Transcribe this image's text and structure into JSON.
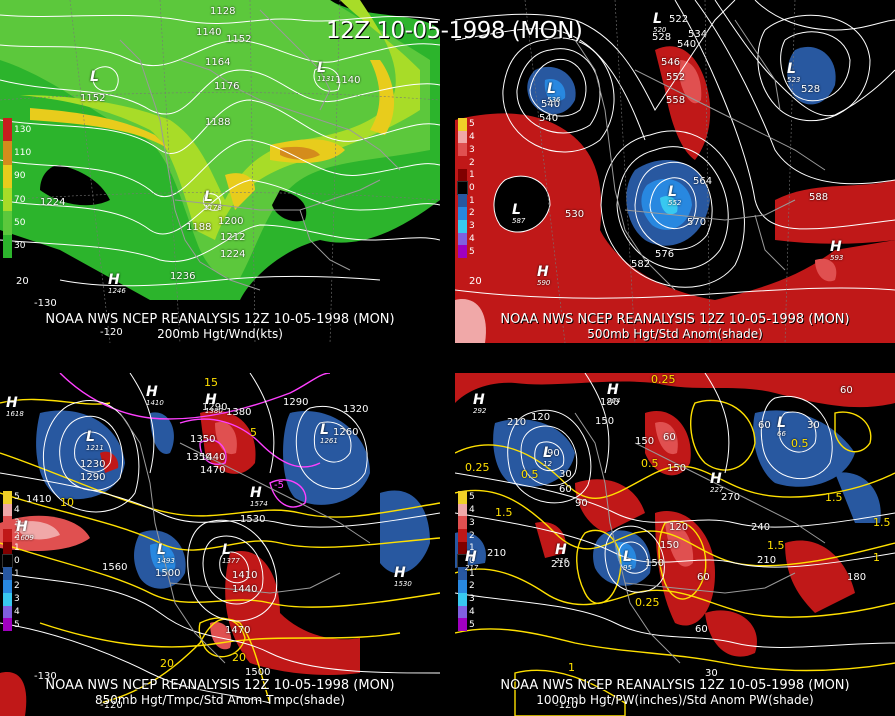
{
  "header": {
    "datetime_label": "12Z 10-05-1998 (MON)"
  },
  "panels": [
    {
      "id": "p200",
      "caption_line1": "NOAA NWS NCEP REANALYSIS 12Z 10-05-1998 (MON)",
      "caption_line2": "200mb Hgt/Wnd(kts)",
      "legend": [
        {
          "label": "130",
          "color": "#c81e1e"
        },
        {
          "label": "110",
          "color": "#d48c1c"
        },
        {
          "label": "90",
          "color": "#e8cc1c"
        },
        {
          "label": "70",
          "color": "#a8dc28"
        },
        {
          "label": "50",
          "color": "#5cc83c"
        },
        {
          "label": "30",
          "color": "#2cb42c"
        }
      ],
      "contour_labels": [
        "1128",
        "1140",
        "1152",
        "1164",
        "1176",
        "1188",
        "1200",
        "1212",
        "1224",
        "1236",
        "1140",
        "1152",
        "1188",
        "1224"
      ],
      "centers": [
        {
          "type": "L",
          "value": "1131"
        },
        {
          "type": "L",
          "value": "1178"
        },
        {
          "type": "H",
          "value": "1246"
        }
      ],
      "longitude_labels": [
        "-130",
        "-120",
        "20"
      ]
    },
    {
      "id": "p500",
      "caption_line1": "NOAA NWS NCEP REANALYSIS 12Z 10-05-1998 (MON)",
      "caption_line2": "500mb Hgt/Std Anom(shade)",
      "legend": [
        {
          "label": "5",
          "color": "#f0d028"
        },
        {
          "label": "4",
          "color": "#f0a8a8"
        },
        {
          "label": "3",
          "color": "#e05050"
        },
        {
          "label": "2",
          "color": "#c01818"
        },
        {
          "label": "1",
          "color": "#800000"
        },
        {
          "label": "0",
          "color": "#000000"
        },
        {
          "label": "1",
          "color": "#2858a0"
        },
        {
          "label": "2",
          "color": "#2888e0"
        },
        {
          "label": "3",
          "color": "#38c8f0"
        },
        {
          "label": "4",
          "color": "#8060e0"
        },
        {
          "label": "5",
          "color": "#a000c0"
        }
      ],
      "contour_labels": [
        "522",
        "528",
        "534",
        "540",
        "546",
        "552",
        "558",
        "564",
        "570",
        "576",
        "582",
        "588",
        "528",
        "540",
        "540",
        "530"
      ],
      "centers": [
        {
          "type": "L",
          "value": "520"
        },
        {
          "type": "L",
          "value": "536"
        },
        {
          "type": "L",
          "value": "523"
        },
        {
          "type": "L",
          "value": "552"
        },
        {
          "type": "H",
          "value": "590"
        },
        {
          "type": "H",
          "value": "593"
        },
        {
          "type": "L",
          "value": "587"
        }
      ],
      "longitude_labels": [
        "20"
      ]
    },
    {
      "id": "p850",
      "caption_line1": "NOAA NWS NCEP REANALYSIS 12Z 10-05-1998 (MON)",
      "caption_line2": "850mb Hgt/Tmpc/Std Anom Tmpc(shade)",
      "legend": [
        {
          "label": "5",
          "color": "#f0d028"
        },
        {
          "label": "4",
          "color": "#f0a8a8"
        },
        {
          "label": "3",
          "color": "#e05050"
        },
        {
          "label": "2",
          "color": "#c01818"
        },
        {
          "label": "1",
          "color": "#800000"
        },
        {
          "label": "0",
          "color": "#000000"
        },
        {
          "label": "1",
          "color": "#2858a0"
        },
        {
          "label": "2",
          "color": "#2888e0"
        },
        {
          "label": "3",
          "color": "#38c8f0"
        },
        {
          "label": "4",
          "color": "#8060e0"
        },
        {
          "label": "5",
          "color": "#a000c0"
        }
      ],
      "contour_labels": [
        "1230",
        "1290",
        "1350",
        "1380",
        "1440",
        "1470",
        "1410",
        "1530",
        "1560",
        "1500",
        "1500",
        "1470",
        "1290",
        "1320",
        "1260",
        "1290",
        "1350",
        "1440",
        "1410"
      ],
      "temp_labels": [
        "15",
        "20",
        "20",
        "5",
        "10"
      ],
      "anom_labels": [
        "-5"
      ],
      "centers": [
        {
          "type": "H",
          "value": "1618"
        },
        {
          "type": "H",
          "value": "1410"
        },
        {
          "type": "L",
          "value": "1211"
        },
        {
          "type": "L",
          "value": "1261"
        },
        {
          "type": "H",
          "value": "1574"
        },
        {
          "type": "H",
          "value": "1609"
        },
        {
          "type": "L",
          "value": "1493"
        },
        {
          "type": "L",
          "value": "1377"
        },
        {
          "type": "H",
          "value": "1530"
        },
        {
          "type": "H",
          "value": "1380"
        }
      ],
      "longitude_labels": [
        "-130",
        "-120"
      ]
    },
    {
      "id": "p1000",
      "caption_line1": "NOAA NWS NCEP REANALYSIS 12Z 10-05-1998 (MON)",
      "caption_line2": "1000mb Hgt/PW(inches)/Std Anom PW(shade)",
      "legend": [
        {
          "label": "5",
          "color": "#f0d028"
        },
        {
          "label": "4",
          "color": "#f0a8a8"
        },
        {
          "label": "3",
          "color": "#e05050"
        },
        {
          "label": "2",
          "color": "#c01818"
        },
        {
          "label": "1",
          "color": "#800000"
        },
        {
          "label": "0",
          "color": "#000000"
        },
        {
          "label": "1",
          "color": "#2858a0"
        },
        {
          "label": "2",
          "color": "#2888e0"
        },
        {
          "label": "3",
          "color": "#38c8f0"
        },
        {
          "label": "4",
          "color": "#8060e0"
        },
        {
          "label": "5",
          "color": "#a000c0"
        }
      ],
      "contour_labels": [
        "210",
        "120",
        "90",
        "30",
        "60",
        "90",
        "150",
        "180",
        "150",
        "60",
        "150",
        "270",
        "240",
        "210",
        "180",
        "150",
        "120",
        "60",
        "60",
        "30",
        "210",
        "210",
        "150",
        "60",
        "30",
        "60"
      ],
      "pw_labels": [
        "0.25",
        "0.5",
        "1.5",
        "1.5",
        "1",
        "0.25",
        "0.5",
        "1.5",
        "1.5",
        "0.5",
        "0.25",
        "1"
      ],
      "centers": [
        {
          "type": "H",
          "value": "292"
        },
        {
          "type": "H",
          "value": "204"
        },
        {
          "type": "L",
          "value": "12"
        },
        {
          "type": "H",
          "value": "227"
        },
        {
          "type": "L",
          "value": "66"
        },
        {
          "type": "H",
          "value": "217"
        },
        {
          "type": "L",
          "value": "95"
        },
        {
          "type": "H",
          "value": "216"
        }
      ],
      "longitude_labels": [
        "-120"
      ]
    }
  ]
}
